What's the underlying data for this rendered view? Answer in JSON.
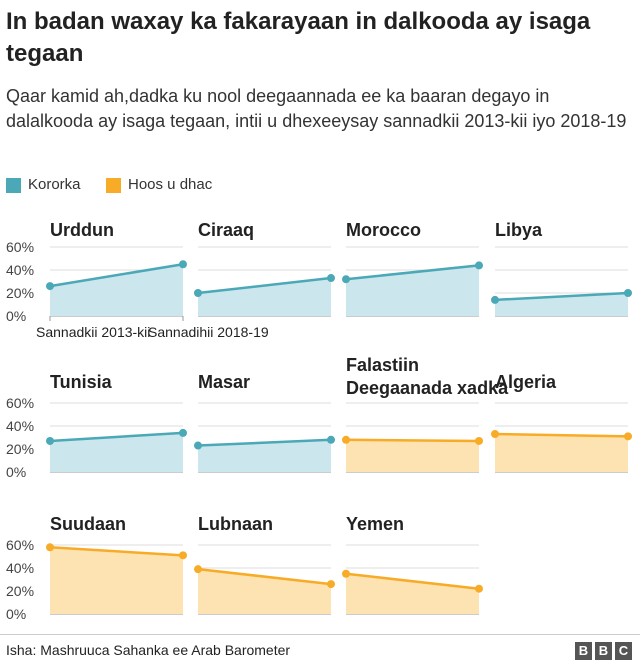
{
  "title": "In badan waxay ka fakarayaan in dalkooda ay isaga tegaan",
  "subtitle": "Qaar kamid ah,dadka ku nool deegaannada ee ka baaran degayo in dalalkooda ay isaga tegaan, intii u dhexeeysay sannadkii 2013-kii iyo 2018-19",
  "legend": [
    {
      "label": "Kororka",
      "color": "#4ba8b6"
    },
    {
      "label": "Hoos u dhac",
      "color": "#f7ab26"
    }
  ],
  "colors": {
    "increase_line": "#4ba8b6",
    "increase_fill": "#cbe6ec",
    "decrease_line": "#f7ab26",
    "decrease_fill": "#fde3b2",
    "grid": "#dddddd",
    "axis_text": "#444444"
  },
  "x_axis_labels": [
    "Sannadkii 2013-kii",
    "Sannadihii 2018-19"
  ],
  "source": "Isha: Mashruuca Sahanka ee Arab Barometer",
  "logo_letters": [
    "B",
    "B",
    "C"
  ],
  "chart_data": {
    "type": "area",
    "title": "In badan waxay ka fakarayaan in dalkooda ay isaga tegaan",
    "x": [
      "Sannadkii 2013-kii",
      "Sannadihii 2018-19"
    ],
    "ylim": [
      0,
      60
    ],
    "yticks": [
      "0%",
      "20%",
      "40%",
      "60%"
    ],
    "panels": [
      {
        "name": "Urddun",
        "trend": "increase",
        "values": [
          26,
          45
        ]
      },
      {
        "name": "Ciraaq",
        "trend": "increase",
        "values": [
          20,
          33
        ]
      },
      {
        "name": "Morocco",
        "trend": "increase",
        "values": [
          32,
          44
        ]
      },
      {
        "name": "Libya",
        "trend": "increase",
        "values": [
          14,
          20
        ]
      },
      {
        "name": "Tunisia",
        "trend": "increase",
        "values": [
          27,
          34
        ]
      },
      {
        "name": "Masar",
        "trend": "increase",
        "values": [
          23,
          28
        ]
      },
      {
        "name": "Falastiin Deegaanada xadka",
        "trend": "decrease",
        "values": [
          28,
          27
        ]
      },
      {
        "name": "Algeria",
        "trend": "decrease",
        "values": [
          33,
          31
        ]
      },
      {
        "name": "Suudaan",
        "trend": "decrease",
        "values": [
          58,
          51
        ]
      },
      {
        "name": "Lubnaan",
        "trend": "decrease",
        "values": [
          39,
          26
        ]
      },
      {
        "name": "Yemen",
        "trend": "decrease",
        "values": [
          35,
          22
        ]
      }
    ]
  }
}
